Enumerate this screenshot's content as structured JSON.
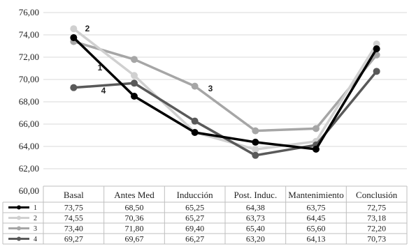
{
  "chart_data": {
    "type": "line",
    "title": "",
    "xlabel": "",
    "ylabel": "",
    "ylim": [
      60,
      76
    ],
    "yticks": [
      "60,00",
      "62,00",
      "64,00",
      "66,00",
      "68,00",
      "70,00",
      "72,00",
      "74,00",
      "76,00"
    ],
    "grid": true,
    "categories": [
      "Basal",
      "Antes Med",
      "Inducción",
      "Post. Induc.",
      "Mantenimiento",
      "Conclusión"
    ],
    "series": [
      {
        "name": "1",
        "color": "#000000",
        "values": [
          73.75,
          68.5,
          65.25,
          64.38,
          63.75,
          72.75
        ],
        "labels": [
          "73,75",
          "68,50",
          "65,25",
          "64,38",
          "63,75",
          "72,75"
        ]
      },
      {
        "name": "2",
        "color": "#d0d0d0",
        "values": [
          74.55,
          70.36,
          65.27,
          63.73,
          64.45,
          73.18
        ],
        "labels": [
          "74,55",
          "70,36",
          "65,27",
          "63,73",
          "64,45",
          "73,18"
        ]
      },
      {
        "name": "3",
        "color": "#a6a6a6",
        "values": [
          73.4,
          71.8,
          69.4,
          65.4,
          65.6,
          72.2
        ],
        "labels": [
          "73,40",
          "71,80",
          "69,40",
          "65,40",
          "65,60",
          "72,20"
        ]
      },
      {
        "name": "4",
        "color": "#595959",
        "values": [
          69.27,
          69.67,
          66.27,
          63.2,
          64.13,
          70.73
        ],
        "labels": [
          "69,27",
          "69,67",
          "66,27",
          "63,20",
          "64,13",
          "70,73"
        ]
      }
    ],
    "annotations": [
      {
        "text": "1",
        "series": 0
      },
      {
        "text": "2",
        "series": 1
      },
      {
        "text": "3",
        "series": 2
      },
      {
        "text": "4",
        "series": 3
      }
    ],
    "legend": "table-bottom"
  }
}
